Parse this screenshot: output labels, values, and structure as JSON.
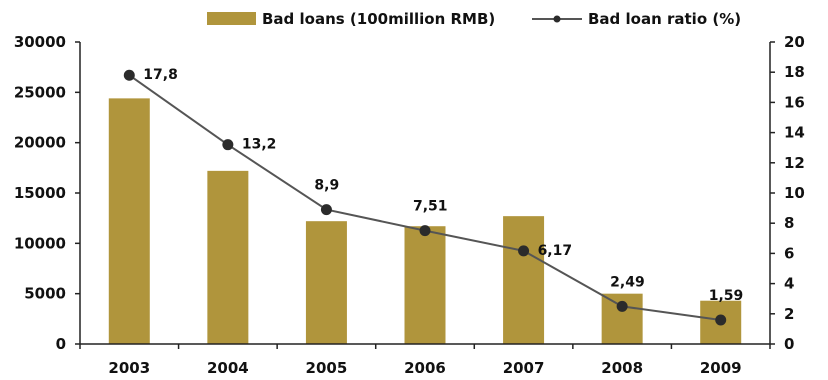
{
  "chart_data": {
    "type": "bar",
    "categories": [
      "2003",
      "2004",
      "2005",
      "2006",
      "2007",
      "2008",
      "2009"
    ],
    "series": [
      {
        "name": "Bad loans (100million RMB)",
        "type": "bar",
        "axis": "left",
        "values": [
          24400,
          17200,
          12200,
          11700,
          12700,
          5000,
          4300
        ]
      },
      {
        "name": "Bad loan ratio (%)",
        "type": "line",
        "axis": "right",
        "values": [
          17.8,
          13.2,
          8.9,
          7.51,
          6.17,
          2.49,
          1.59
        ],
        "labels": [
          "17,8",
          "13,2",
          "8,9",
          "7,51",
          "6,17",
          "2,49",
          "1,59"
        ]
      }
    ],
    "y_left": {
      "range": [
        0,
        30000
      ],
      "ticks": [
        "0",
        "5000",
        "10000",
        "15000",
        "20000",
        "25000",
        "30000"
      ]
    },
    "y_right": {
      "range": [
        0,
        20
      ],
      "ticks": [
        "0",
        "2",
        "4",
        "6",
        "8",
        "10",
        "12",
        "14",
        "16",
        "18",
        "20"
      ]
    },
    "title": "",
    "xlabel": "",
    "ylabel": "",
    "grid": false,
    "legend": "top",
    "colors": {
      "bar": "#b0953c",
      "line": "#555555",
      "marker": "#2b2b2b",
      "axis": "#222222"
    }
  }
}
